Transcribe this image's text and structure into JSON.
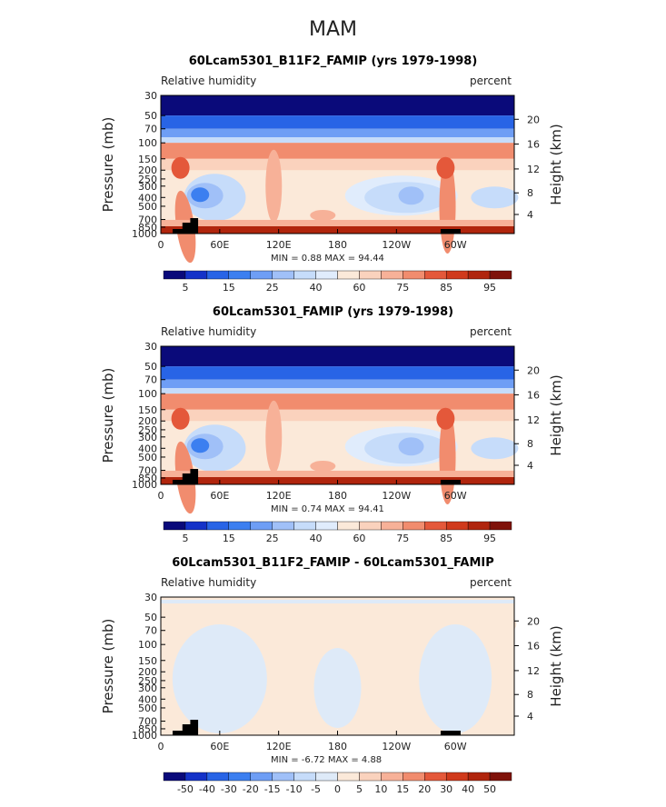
{
  "page": {
    "main_title": "MAM"
  },
  "colors": {
    "rh_scale": [
      "#0a0a7a",
      "#1432c8",
      "#2864e6",
      "#3c7ff0",
      "#6e9ef5",
      "#a0c0f8",
      "#c6dcfa",
      "#e0ecfc",
      "#fbe9d9",
      "#fad2bd",
      "#f7b198",
      "#f18c6e",
      "#e4583a",
      "#d03a1c",
      "#b0250d",
      "#7f120a"
    ],
    "diff_scale": [
      "#0a0a7a",
      "#1432c8",
      "#2864e6",
      "#3c7ff0",
      "#6e9ef5",
      "#a0c0f8",
      "#c6dcfa",
      "#deeaf8",
      "#fbe9d9",
      "#fad2bd",
      "#f7b198",
      "#f18c6e",
      "#e4583a",
      "#d03a1c",
      "#b0250d",
      "#7f120a"
    ],
    "topography": "#000000"
  },
  "chart_data": [
    {
      "type": "heatmap",
      "title": "60Lcam5301_B11F2_FAMIP (yrs 1979-1998)",
      "left_label": "Relative humidity",
      "right_label": "percent",
      "ylabel": "Pressure (mb)",
      "ylabel_right": "Height (km)",
      "x_ticks": [
        "0",
        "60E",
        "120E",
        "180",
        "120W",
        "60W"
      ],
      "y_ticks": [
        "30",
        "50",
        "70",
        "100",
        "150",
        "200",
        "250",
        "300",
        "400",
        "500",
        "700",
        "850",
        "1000"
      ],
      "height_ticks": [
        "20",
        "16",
        "12",
        "8",
        "4"
      ],
      "min": "0.88",
      "max": "94.44",
      "stats_text": "MIN =    0.88   MAX =    94.44",
      "colorbar_labels": [
        "5",
        "15",
        "25",
        "40",
        "60",
        "75",
        "85",
        "95"
      ]
    },
    {
      "type": "heatmap",
      "title": "60Lcam5301_FAMIP (yrs 1979-1998)",
      "left_label": "Relative humidity",
      "right_label": "percent",
      "ylabel": "Pressure (mb)",
      "ylabel_right": "Height (km)",
      "x_ticks": [
        "0",
        "60E",
        "120E",
        "180",
        "120W",
        "60W"
      ],
      "y_ticks": [
        "30",
        "50",
        "70",
        "100",
        "150",
        "200",
        "250",
        "300",
        "400",
        "500",
        "700",
        "850",
        "1000"
      ],
      "height_ticks": [
        "20",
        "16",
        "12",
        "8",
        "4"
      ],
      "min": "0.74",
      "max": "94.41",
      "stats_text": "MIN =    0.74   MAX =    94.41",
      "colorbar_labels": [
        "5",
        "15",
        "25",
        "40",
        "60",
        "75",
        "85",
        "95"
      ]
    },
    {
      "type": "heatmap",
      "title": "60Lcam5301_B11F2_FAMIP - 60Lcam5301_FAMIP",
      "left_label": "Relative humidity",
      "right_label": "percent",
      "ylabel": "Pressure (mb)",
      "ylabel_right": "Height (km)",
      "x_ticks": [
        "0",
        "60E",
        "120E",
        "180",
        "120W",
        "60W"
      ],
      "y_ticks": [
        "30",
        "50",
        "70",
        "100",
        "150",
        "200",
        "250",
        "300",
        "400",
        "500",
        "700",
        "850",
        "1000"
      ],
      "height_ticks": [
        "20",
        "16",
        "12",
        "8",
        "4"
      ],
      "min": "-6.72",
      "max": "4.88",
      "stats_text": "MIN =   -6.72   MAX =    4.88",
      "colorbar_labels": [
        "-50",
        "-40",
        "-30",
        "-20",
        "-15",
        "-10",
        "-5",
        "0",
        "5",
        "10",
        "15",
        "20",
        "30",
        "40",
        "50"
      ]
    }
  ]
}
